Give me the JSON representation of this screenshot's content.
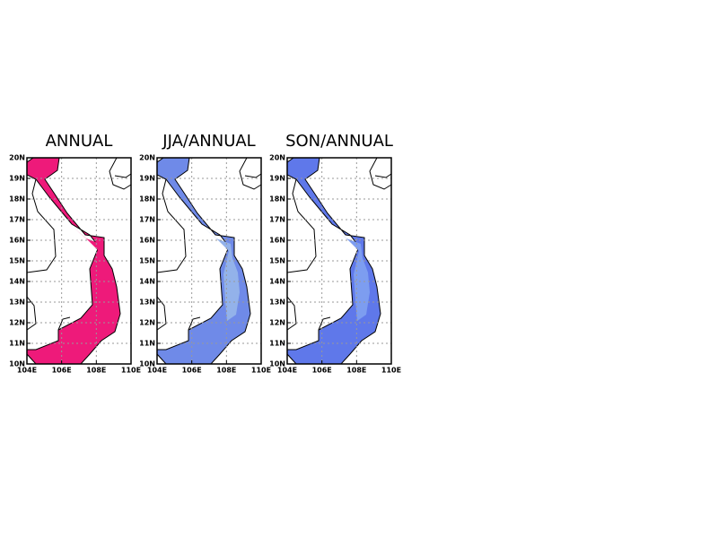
{
  "panels": [
    {
      "title": "ANNUAL",
      "fill": "#ee1a7a",
      "inner": "#ee1a7a"
    },
    {
      "title": "JJA/ANNUAL",
      "fill": "#6f8ae8",
      "inner": "#93b2ea"
    },
    {
      "title": "SON/ANNUAL",
      "fill": "#5f78ea",
      "inner": "#7d9df0"
    }
  ],
  "xlim": [
    104,
    110
  ],
  "ylim": [
    10,
    20
  ],
  "xticks": [
    {
      "value": 104,
      "label": "104E"
    },
    {
      "value": 106,
      "label": "106E"
    },
    {
      "value": 108,
      "label": "108E"
    },
    {
      "value": 110,
      "label": "110E"
    }
  ],
  "yticks": [
    {
      "value": 10,
      "label": "10N"
    },
    {
      "value": 11,
      "label": "11N"
    },
    {
      "value": 12,
      "label": "12N"
    },
    {
      "value": 13,
      "label": "13N"
    },
    {
      "value": 14,
      "label": "14N"
    },
    {
      "value": 15,
      "label": "15N"
    },
    {
      "value": 16,
      "label": "16N"
    },
    {
      "value": 17,
      "label": "17N"
    },
    {
      "value": 18,
      "label": "18N"
    },
    {
      "value": 19,
      "label": "19N"
    },
    {
      "value": 20,
      "label": "20N"
    }
  ]
}
